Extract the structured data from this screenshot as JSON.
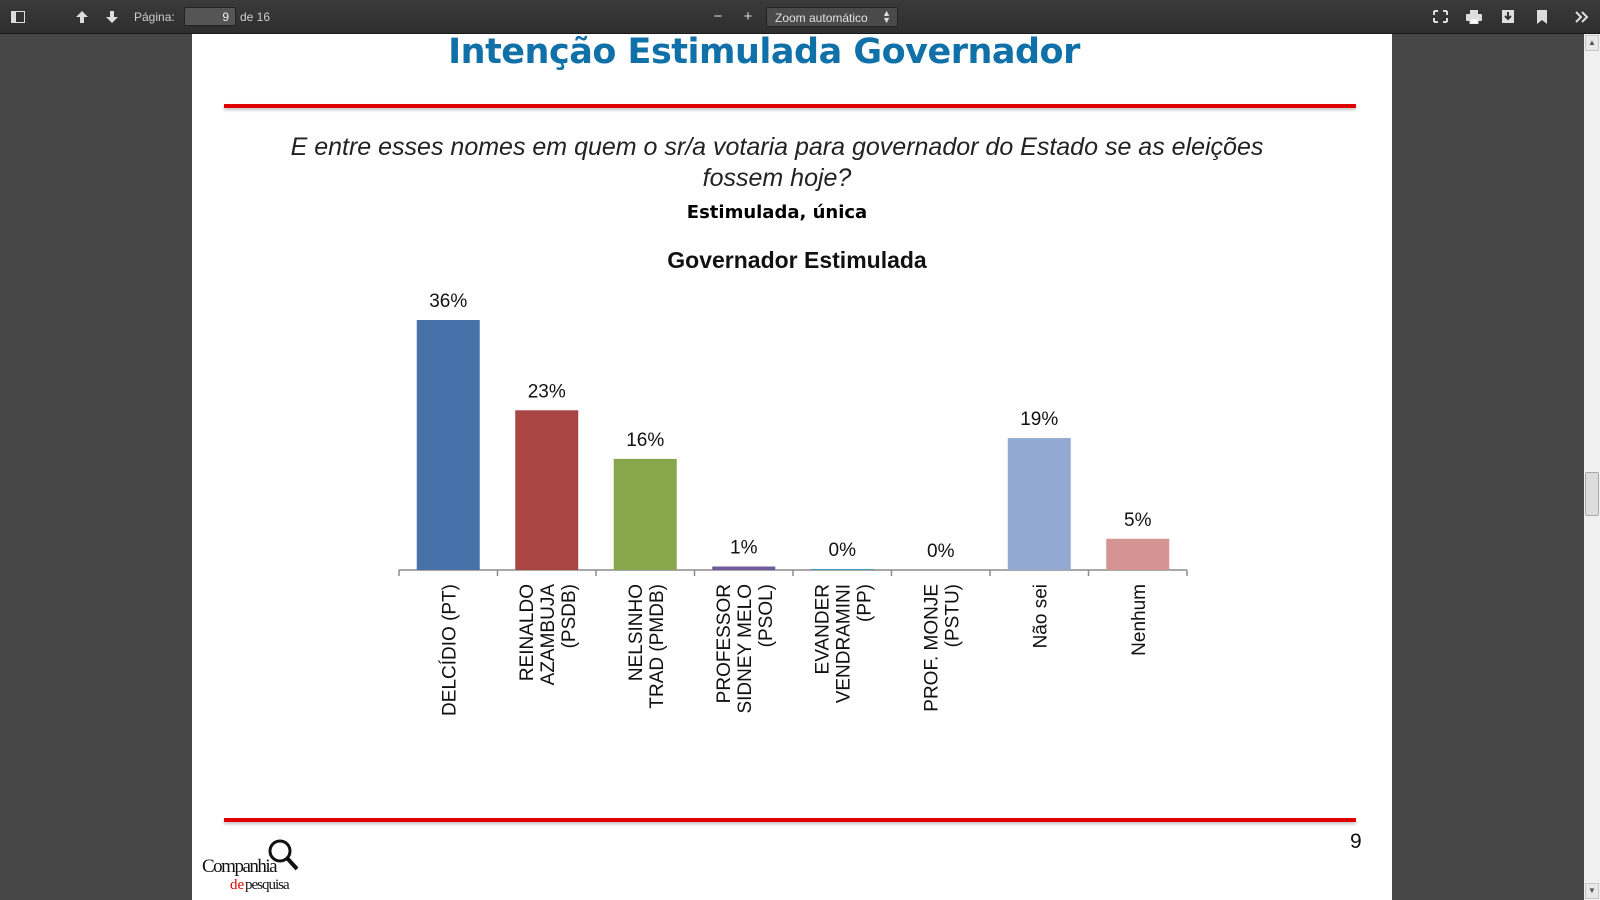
{
  "toolbar": {
    "sidebar_toggle_icon": "sidebar-toggle-icon",
    "page_label": "Página:",
    "page_value": "9",
    "page_count": "de 16",
    "zoom_out_symbol": "−",
    "zoom_in_symbol": "+",
    "zoom_value": "Zoom automático",
    "icons": [
      "presentation-mode-icon",
      "print-icon",
      "download-icon",
      "bookmark-icon",
      "more-tools-icon"
    ]
  },
  "slide": {
    "title": "Intenção Estimulada Governador",
    "question_line1": "E entre esses nomes em quem o sr/a votaria para governador do Estado se as eleições",
    "question_line2": "fossem hoje?",
    "qualifier": "Estimulada, única",
    "page_number": "9",
    "logo_text_1": "Companhia",
    "logo_text_2": "de",
    "logo_text_3": "pesquisa"
  },
  "chart_data": {
    "type": "bar",
    "title": "Governador Estimulada",
    "categories": [
      [
        "DELCÍDIO (PT)"
      ],
      [
        "REINALDO",
        "AZAMBUJA",
        "(PSDB)"
      ],
      [
        "NELSINHO",
        "TRAD (PMDB)"
      ],
      [
        "PROFESSOR",
        "SIDNEY MELO",
        "(PSOL)"
      ],
      [
        "EVANDER",
        "VENDRAMINI",
        "(PP)"
      ],
      [
        "PROF. MONJE",
        "(PSTU)"
      ],
      [
        "Não sei"
      ],
      [
        "Nenhum"
      ]
    ],
    "values": [
      36,
      23,
      16,
      1,
      0,
      0,
      19,
      5
    ],
    "value_labels": [
      "36%",
      "23%",
      "16%",
      "1%",
      "0%",
      "0%",
      "19%",
      "5%"
    ],
    "display_values": [
      36,
      23,
      16,
      0.5,
      0.15,
      0,
      19,
      4.5
    ],
    "colors": [
      "#4672a9",
      "#a94543",
      "#88a64c",
      "#70599a",
      "#43a1bd",
      "#e38c3b",
      "#93a8d3",
      "#d69393"
    ],
    "ylim": [
      0,
      36
    ],
    "grid": false,
    "legend": "none"
  }
}
